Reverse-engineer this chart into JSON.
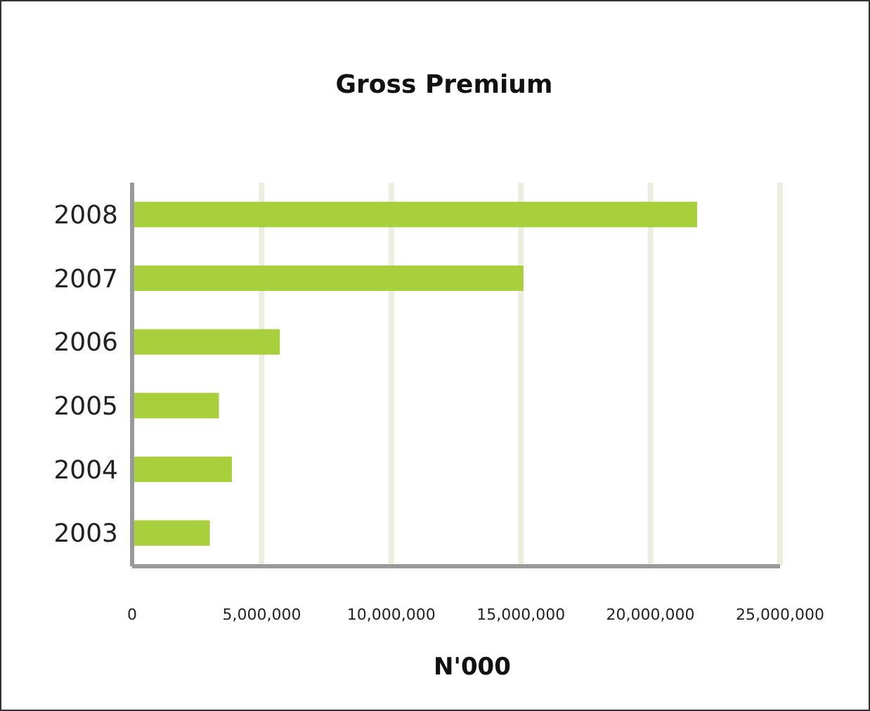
{
  "chart_data": {
    "type": "bar",
    "orientation": "horizontal",
    "title": "Gross Premium",
    "xlabel": "N'000",
    "categories": [
      "2008",
      "2007",
      "2006",
      "2005",
      "2004",
      "2003"
    ],
    "values": [
      21800000,
      15100000,
      5700000,
      3350000,
      3850000,
      3000000
    ],
    "color": "#a8cf3c",
    "xlim": [
      0,
      25000000
    ],
    "xticks": [
      0,
      {
        "value": 5000000,
        "label": "5,000,000"
      },
      {
        "value": 10000000,
        "label": "10,000,000"
      },
      {
        "value": 15000000,
        "label": "15,000,000"
      },
      {
        "value": 20000000,
        "label": "20,000,000"
      },
      {
        "value": 25000000,
        "label": "25,000,000"
      }
    ],
    "grid": "x"
  }
}
